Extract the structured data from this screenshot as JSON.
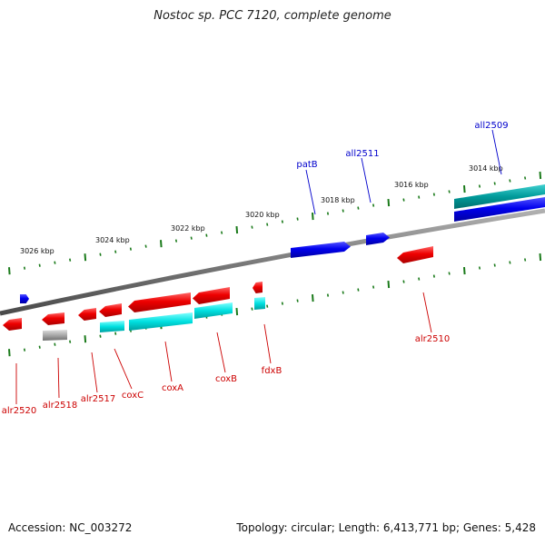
{
  "title": "Nostoc sp. PCC 7120, complete genome",
  "footer": {
    "accession": "Accession: NC_003272",
    "summary": "Topology: circular; Length: 6,413,771 bp; Genes: 5,428"
  },
  "colors": {
    "forward_gene": "#0000ee",
    "reverse_gene": "#ee0000",
    "forward_cds": "#00bfbf",
    "reverse_cds": "#00e5e5",
    "pseudo": "#a8a8a8",
    "backbone": "#808080",
    "tick": "#1a7a1a",
    "label_forward": "#0000cc",
    "label_reverse": "#cc0000"
  },
  "scale": [
    "3026 kbp",
    "3024 kbp",
    "3022 kbp",
    "3020 kbp",
    "3018 kbp",
    "3016 kbp",
    "3014 kbp"
  ],
  "genes_forward": [
    "patB",
    "all2511",
    "all2509"
  ],
  "genes_reverse": [
    "alr2520",
    "alr2518",
    "alr2517",
    "coxC",
    "coxA",
    "coxB",
    "fdxB",
    "alr2510"
  ]
}
